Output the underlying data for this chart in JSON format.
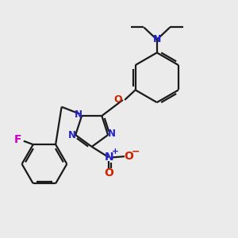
{
  "bg_color": "#ebebeb",
  "bond_color": "#1a1a1a",
  "nitrogen_color": "#2222cc",
  "oxygen_color": "#cc2200",
  "fluorine_color": "#cc00cc",
  "figsize": [
    3.0,
    3.0
  ],
  "dpi": 100,
  "xlim": [
    0,
    10
  ],
  "ylim": [
    0,
    10
  ]
}
